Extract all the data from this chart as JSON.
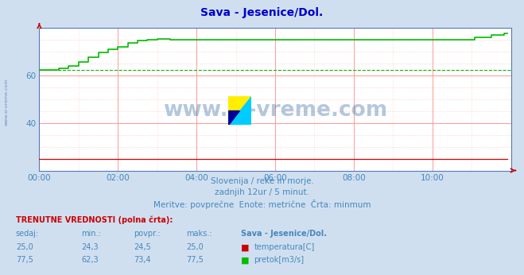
{
  "title": "Sava - Jesenice/Dol.",
  "title_color": "#0000cc",
  "bg_color": "#d0dff0",
  "plot_bg_color": "#ffffff",
  "grid_color_solid": "#ff9999",
  "grid_color_dot": "#ffbbbb",
  "xlabel_color": "#4488bb",
  "ylabel_color": "#4488bb",
  "watermark_text": "www.si-vreme.com",
  "watermark_color": "#4477aa",
  "subtitle1": "Slovenija / reke in morje.",
  "subtitle2": "zadnjih 12ur / 5 minut.",
  "subtitle3": "Meritve: povprečne  Enote: metrične  Črta: minmum",
  "footer_label": "TRENUTNE VREDNOSTI (polna črta):",
  "col_sedaj": "sedaj:",
  "col_min": "min.:",
  "col_povpr": "povpr.:",
  "col_maks": "maks.:",
  "col_station": "Sava - Jesenice/Dol.",
  "temp_sedaj": "25,0",
  "temp_min": "24,3",
  "temp_povpr": "24,5",
  "temp_maks": "25,0",
  "temp_label": "temperatura[C]",
  "temp_color": "#cc0000",
  "flow_sedaj": "77,5",
  "flow_min": "62,3",
  "flow_povpr": "73,4",
  "flow_maks": "77,5",
  "flow_label": "pretok[m3/s]",
  "flow_color": "#00bb00",
  "ylim": [
    20,
    80
  ],
  "yticks": [
    40,
    60
  ],
  "xlim": [
    0,
    144
  ],
  "xtick_positions": [
    0,
    24,
    48,
    72,
    96,
    120,
    144
  ],
  "xtick_labels": [
    "00:00",
    "02:00",
    "04:00",
    "06:00",
    "08:00",
    "10:00",
    ""
  ],
  "spine_color": "#5577bb",
  "left_watermark": "www.si-vreme.com"
}
